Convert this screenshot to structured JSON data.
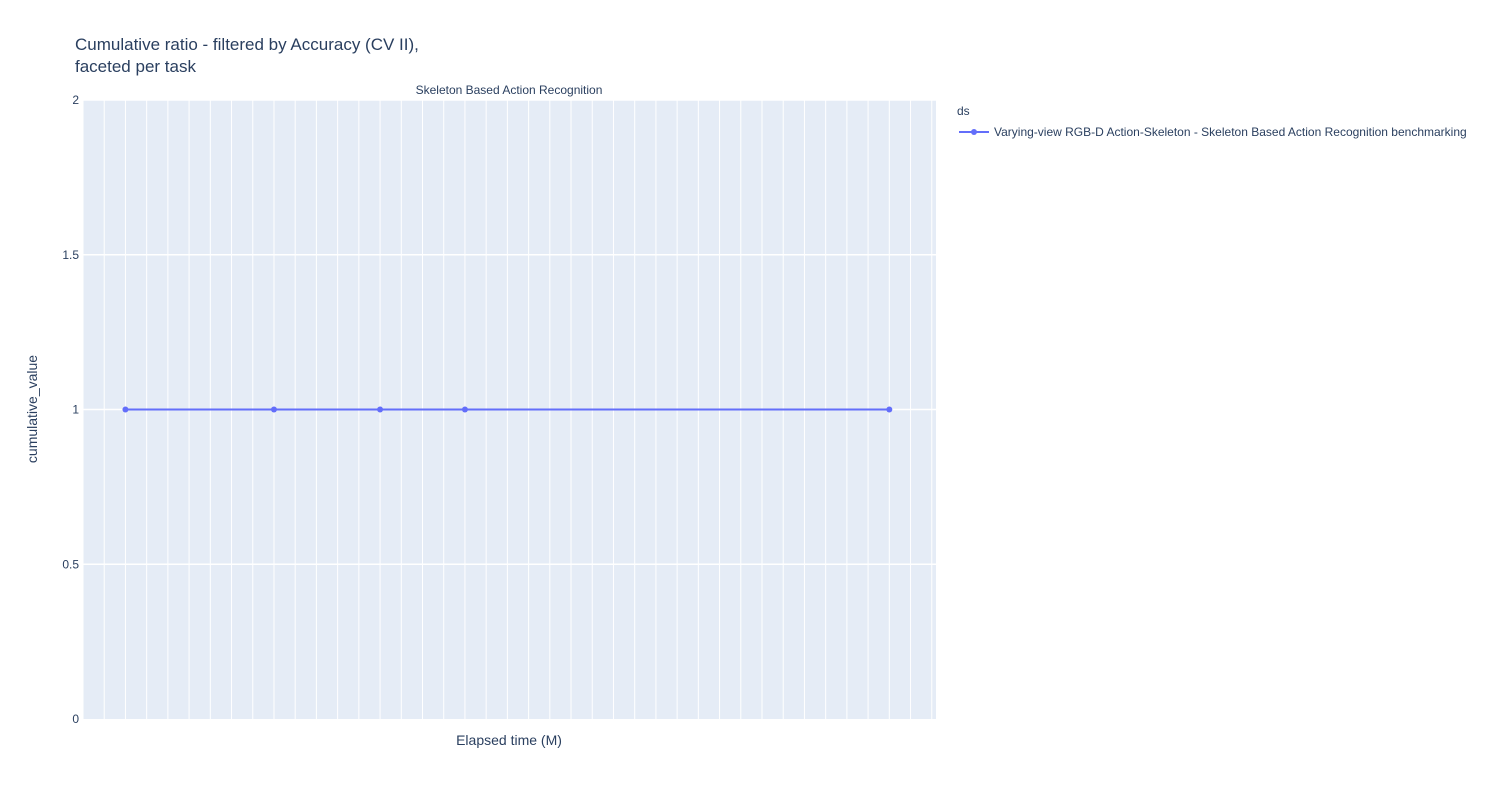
{
  "chart_data": {
    "type": "line",
    "title": "Cumulative ratio - filtered by Accuracy (CV II),",
    "title_line2": "faceted per task",
    "subplot_title": "Skeleton Based Action Recognition",
    "xlabel": "Elapsed time (M)",
    "ylabel": "cumulative_value",
    "ylim": [
      0,
      2
    ],
    "y_ticks": [
      0,
      0.5,
      1,
      1.5,
      2
    ],
    "y_tick_labels": [
      "0",
      "0.5",
      "1",
      "1.5",
      "2"
    ],
    "x_tick_labels_visible": false,
    "grid": true,
    "legend_title": "ds",
    "legend_position": "top-right outside",
    "series": [
      {
        "name": "Varying-view RGB-D Action-Skeleton - Skeleton Based Action Recognition benchmarking",
        "color": "#636efa",
        "x": [
          2,
          9,
          14,
          18,
          38
        ],
        "y": [
          1,
          1,
          1,
          1,
          1
        ]
      }
    ],
    "xlim": [
      0,
      40.2
    ]
  }
}
